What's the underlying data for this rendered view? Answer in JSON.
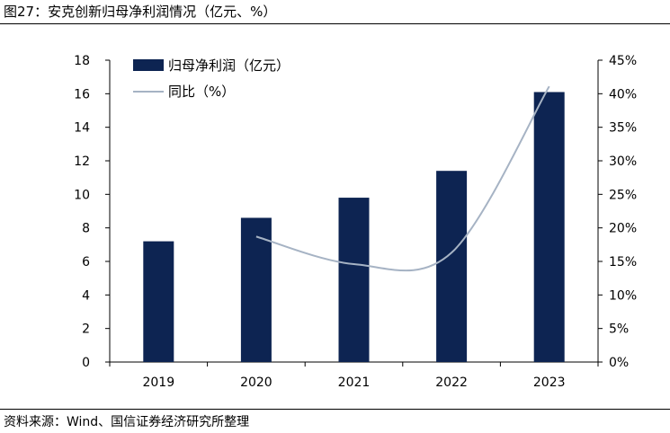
{
  "figure": {
    "title": "图27：安克创新归母净利润情况（亿元、%）",
    "source": "资料来源：Wind、国信证券经济研究所整理"
  },
  "chart_data": {
    "type": "bar",
    "categories": [
      "2019",
      "2020",
      "2021",
      "2022",
      "2023"
    ],
    "series": [
      {
        "name": "归母净利润（亿元）",
        "type": "bar",
        "axis": "left",
        "values": [
          7.2,
          8.6,
          9.8,
          11.4,
          16.1
        ],
        "color": "#0d2452"
      },
      {
        "name": "同比（%）",
        "type": "line",
        "axis": "right",
        "values": [
          null,
          18.7,
          14.6,
          16.3,
          41.1
        ],
        "color": "#a6b3c4"
      }
    ],
    "y_left": {
      "min": 0,
      "max": 18,
      "step": 2,
      "ticks": [
        "0",
        "2",
        "4",
        "6",
        "8",
        "10",
        "12",
        "14",
        "16",
        "18"
      ]
    },
    "y_right": {
      "min": 0,
      "max": 45,
      "step": 5,
      "ticks": [
        "0%",
        "5%",
        "10%",
        "15%",
        "20%",
        "25%",
        "30%",
        "35%",
        "40%",
        "45%"
      ]
    },
    "legend": {
      "position": "top-left"
    },
    "grid": false
  }
}
